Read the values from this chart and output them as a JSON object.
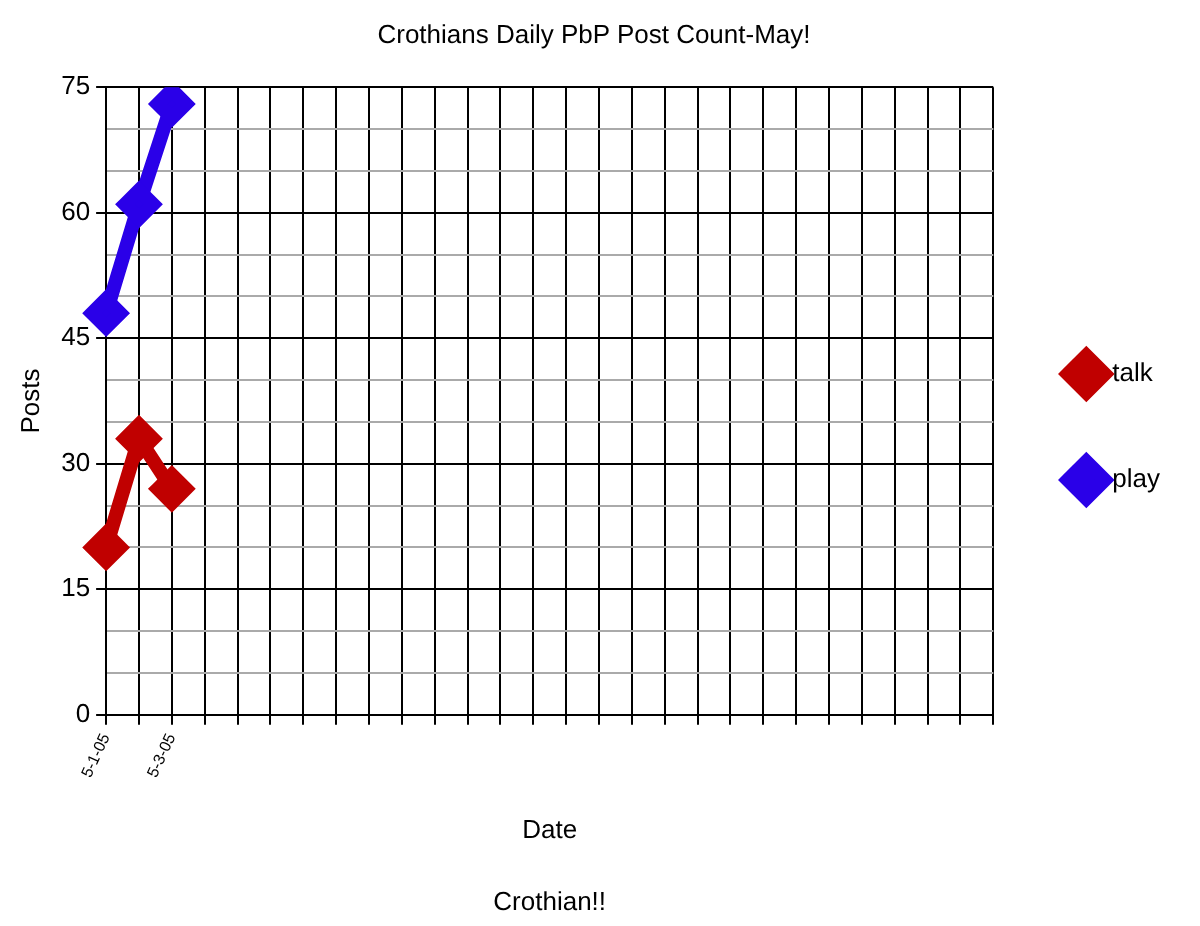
{
  "chart_data": {
    "type": "line",
    "title": "Crothians Daily PbP Post Count-May!",
    "xlabel": "Date",
    "ylabel": "Posts",
    "annotations": [
      "Crothian!!"
    ],
    "categories": [
      "5-1-05",
      null,
      "5-3-05",
      null,
      null,
      null,
      null,
      null,
      null,
      null,
      null,
      null,
      null,
      null,
      null,
      null,
      null,
      null,
      null,
      null,
      null,
      null,
      null,
      null,
      null,
      null,
      null,
      null
    ],
    "series": [
      {
        "name": "talk",
        "color": "#c00000",
        "values": [
          20,
          33,
          27,
          null,
          null,
          null,
          null,
          null,
          null,
          null,
          null,
          null,
          null,
          null,
          null,
          null,
          null,
          null,
          null,
          null,
          null,
          null,
          null,
          null,
          null,
          null,
          null,
          null
        ]
      },
      {
        "name": "play",
        "color": "#2a00e8",
        "values": [
          48,
          61,
          73,
          null,
          null,
          null,
          null,
          null,
          null,
          null,
          null,
          null,
          null,
          null,
          null,
          null,
          null,
          null,
          null,
          null,
          null,
          null,
          null,
          null,
          null,
          null,
          null,
          null
        ]
      }
    ],
    "ylim": [
      0,
      75
    ],
    "yticks": [
      0,
      {
        "value": 5,
        "label": null
      },
      {
        "value": 10,
        "label": null
      },
      15,
      {
        "value": 20,
        "label": null
      },
      {
        "value": 25,
        "label": null
      },
      30,
      {
        "value": 35,
        "label": null
      },
      {
        "value": 40,
        "label": null
      },
      45,
      {
        "value": 50,
        "label": null
      },
      {
        "value": 55,
        "label": null
      },
      60,
      {
        "value": 65,
        "label": null
      },
      {
        "value": 70,
        "label": null
      },
      75
    ],
    "grid": true,
    "legend": "right",
    "marker": "diamond",
    "line_style": "solid"
  }
}
